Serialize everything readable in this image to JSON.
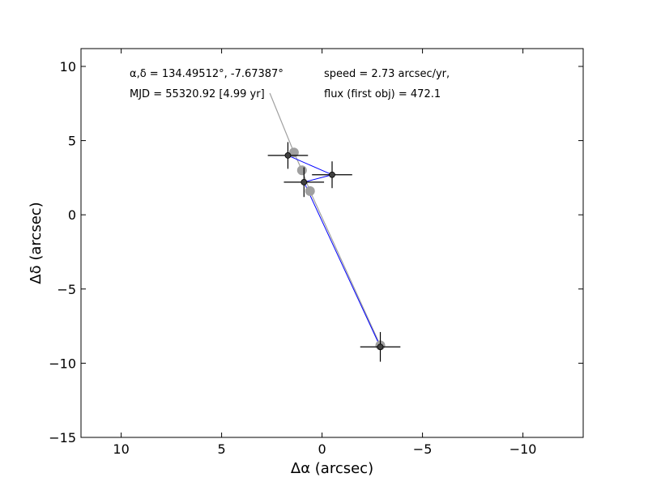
{
  "chart_data": {
    "type": "scatter",
    "xlabel": "Δα (arcsec)",
    "ylabel": "Δδ (arcsec)",
    "xlim": [
      12,
      -13
    ],
    "ylim": [
      -15,
      11.2
    ],
    "x_ticks": [
      10,
      5,
      0,
      -5,
      -10
    ],
    "x_tick_labels": [
      "10",
      "5",
      "0",
      "−5",
      "−10"
    ],
    "y_ticks": [
      10,
      5,
      0,
      -5,
      -10,
      -15
    ],
    "y_tick_labels": [
      "10",
      "5",
      "0",
      "−5",
      "−10",
      "−15"
    ],
    "grid": false,
    "annotations": {
      "radec": "α,δ = 134.49512°, -7.67387°",
      "mjd": "MJD = 55320.92 [4.99 yr]",
      "speed": "speed = 2.73 arcsec/yr,",
      "flux": "flux (first obj) = 472.1"
    },
    "observed_points": [
      {
        "x": 1.7,
        "y": 4.0,
        "xerr": 1.0,
        "yerr": 0.9
      },
      {
        "x": -0.5,
        "y": 2.7,
        "xerr": 1.0,
        "yerr": 0.9
      },
      {
        "x": 0.9,
        "y": 2.2,
        "xerr": 1.0,
        "yerr": 1.0
      },
      {
        "x": -2.9,
        "y": -8.9,
        "xerr": 1.0,
        "yerr": 1.0
      }
    ],
    "predicted_points": [
      {
        "x": 1.4,
        "y": 4.2
      },
      {
        "x": 1.0,
        "y": 3.0
      },
      {
        "x": 0.6,
        "y": 1.6
      },
      {
        "x": -2.9,
        "y": -8.8
      }
    ],
    "gray_track": [
      {
        "x": 2.6,
        "y": 8.2
      },
      {
        "x": 1.4,
        "y": 4.2
      },
      {
        "x": 1.0,
        "y": 3.0
      },
      {
        "x": 0.6,
        "y": 1.6
      },
      {
        "x": -2.9,
        "y": -8.8
      }
    ],
    "blue_track": [
      {
        "x": 1.7,
        "y": 4.0
      },
      {
        "x": -0.5,
        "y": 2.7
      },
      {
        "x": 0.9,
        "y": 2.2
      },
      {
        "x": -2.9,
        "y": -8.9
      }
    ],
    "colors": {
      "observed": "#404040",
      "predicted": "#a0a0a0",
      "blue_track": "#0000ff",
      "gray_track": "#a0a0a0",
      "errorbar": "#000000",
      "axes": "#000000"
    }
  }
}
